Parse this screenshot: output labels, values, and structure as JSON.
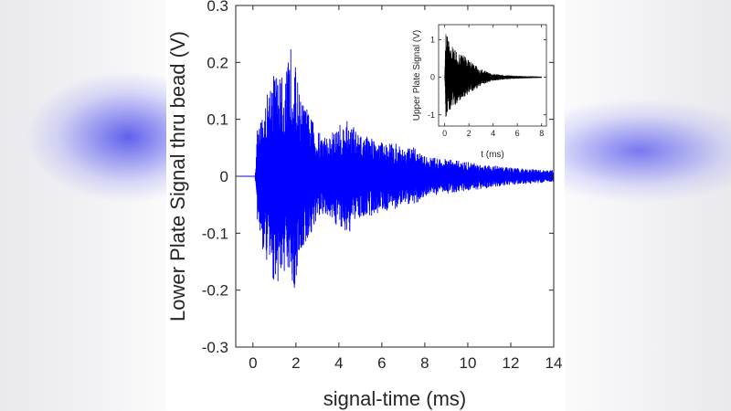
{
  "chart_data": [
    {
      "type": "line",
      "xlabel": "signal-time (ms)",
      "ylabel": "Lower Plate Signal thru bead (V)",
      "xlim": [
        -0.8,
        14
      ],
      "ylim": [
        -0.3,
        0.3
      ],
      "x_ticks": [
        0,
        2,
        4,
        6,
        8,
        10,
        12,
        14
      ],
      "y_ticks": [
        -0.3,
        -0.2,
        -0.1,
        0,
        0.1,
        0.2,
        0.3
      ],
      "x_tick_labels": [
        "0",
        "2",
        "4",
        "6",
        "8",
        "10",
        "12",
        "14"
      ],
      "y_tick_labels": [
        "-0.3",
        "-0.2",
        "-0.1",
        "0",
        "0.1",
        "0.2",
        "0.3"
      ],
      "grid": false,
      "series": [
        {
          "color": "#0000ff",
          "description_of_shape": "dense oscillating signal, zero before ~0.2 ms, bursts with peak amplitude ~0.24 V near 1.8 ms, decaying to ~0.01 V by 14 ms",
          "envelope": {
            "t": [
              -0.8,
              0.1,
              0.2,
              0.5,
              0.9,
              1.2,
              1.5,
              1.8,
              2.2,
              2.5,
              3.0,
              3.5,
              4.0,
              4.5,
              5.0,
              5.5,
              6.0,
              6.5,
              7.0,
              7.5,
              8.0,
              9.0,
              10.0,
              11.0,
              12.0,
              13.0,
              14.0
            ],
            "upper": [
              0.0,
              0.0,
              0.08,
              0.12,
              0.19,
              0.18,
              0.17,
              0.24,
              0.14,
              0.12,
              0.08,
              0.07,
              0.09,
              0.1,
              0.07,
              0.07,
              0.06,
              0.06,
              0.05,
              0.05,
              0.035,
              0.03,
              0.025,
              0.02,
              0.015,
              0.012,
              0.01
            ],
            "lower": [
              0.0,
              0.0,
              -0.08,
              -0.14,
              -0.18,
              -0.19,
              -0.17,
              -0.23,
              -0.14,
              -0.12,
              -0.08,
              -0.07,
              -0.09,
              -0.1,
              -0.07,
              -0.07,
              -0.06,
              -0.06,
              -0.05,
              -0.05,
              -0.035,
              -0.03,
              -0.025,
              -0.02,
              -0.015,
              -0.012,
              -0.01
            ]
          }
        }
      ]
    },
    {
      "type": "line",
      "xlabel": "t (ms)",
      "ylabel": "Upper Plate Signal (V)",
      "xlim": [
        -0.5,
        8.4
      ],
      "ylim": [
        -1.3,
        1.4
      ],
      "x_ticks": [
        0,
        2,
        4,
        6,
        8
      ],
      "y_ticks": [
        -1,
        0,
        1
      ],
      "x_tick_labels": [
        "0",
        "2",
        "4",
        "6",
        "8"
      ],
      "y_tick_labels": [
        "-1",
        "0",
        "1"
      ],
      "grid": false,
      "series": [
        {
          "color": "#000000",
          "description_of_shape": "oscillating signal starting at t=0 with amplitude ~1.2 V, decaying exponentially to near zero by ~5 ms",
          "envelope": {
            "t": [
              0,
              0.1,
              0.3,
              0.6,
              1.0,
              1.5,
              2.0,
              2.5,
              3.0,
              3.5,
              4.0,
              5.0,
              6.0,
              7.0,
              8.0
            ],
            "upper": [
              0.0,
              1.25,
              1.05,
              0.9,
              0.7,
              0.6,
              0.45,
              0.32,
              0.22,
              0.14,
              0.09,
              0.05,
              0.03,
              0.02,
              0.01
            ],
            "lower": [
              0.0,
              -1.1,
              -1.0,
              -0.85,
              -0.7,
              -0.55,
              -0.45,
              -0.32,
              -0.22,
              -0.14,
              -0.09,
              -0.05,
              -0.03,
              -0.02,
              -0.01
            ]
          }
        }
      ]
    }
  ]
}
